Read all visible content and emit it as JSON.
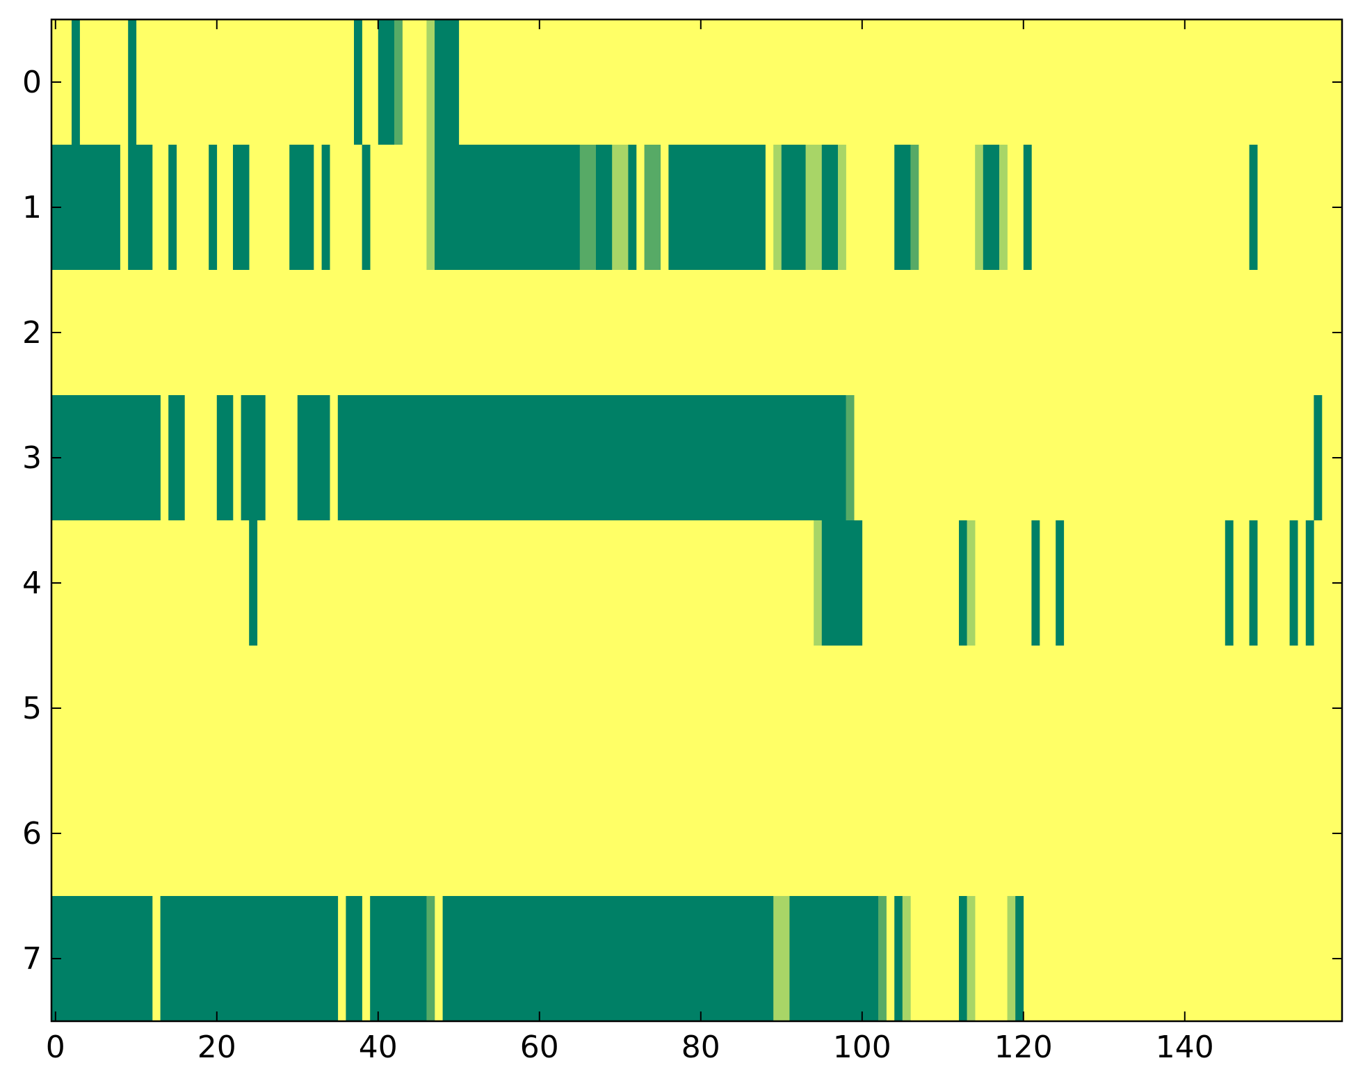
{
  "chart_data": {
    "type": "heatmap",
    "title": "",
    "xlabel": "",
    "ylabel": "",
    "xlim": [
      -0.5,
      159.5
    ],
    "ylim": [
      7.5,
      -0.5
    ],
    "x_ticks": [
      0,
      20,
      40,
      60,
      80,
      100,
      120,
      140
    ],
    "x_tick_labels": [
      "0",
      "20",
      "40",
      "60",
      "80",
      "100",
      "120",
      "140"
    ],
    "y_ticks": [
      0,
      1,
      2,
      3,
      4,
      5,
      6,
      7
    ],
    "y_tick_labels": [
      "0",
      "1",
      "2",
      "3",
      "4",
      "5",
      "6",
      "7"
    ],
    "grid": false,
    "colormap": "summer_r",
    "value_colors": {
      "0": "#ffff66",
      "1": "#a8d567",
      "2": "#57aa66",
      "3": "#008066"
    },
    "rows": [
      {
        "row": 0,
        "segments": [
          [
            2,
            3,
            3
          ],
          [
            9,
            10,
            3
          ],
          [
            37,
            38,
            3
          ],
          [
            40,
            42,
            3
          ],
          [
            42,
            43,
            2
          ],
          [
            46,
            47,
            1
          ],
          [
            47,
            50,
            3
          ]
        ]
      },
      {
        "row": 1,
        "segments": [
          [
            -0.5,
            8,
            3
          ],
          [
            9,
            12,
            3
          ],
          [
            14,
            15,
            3
          ],
          [
            19,
            20,
            3
          ],
          [
            22,
            24,
            3
          ],
          [
            29,
            32,
            3
          ],
          [
            33,
            34,
            3
          ],
          [
            38,
            39,
            3
          ],
          [
            46,
            47,
            1
          ],
          [
            47,
            65,
            3
          ],
          [
            65,
            67,
            2
          ],
          [
            67,
            69,
            3
          ],
          [
            69,
            71,
            1
          ],
          [
            71,
            72,
            3
          ],
          [
            73,
            75,
            2
          ],
          [
            76,
            88,
            3
          ],
          [
            89,
            90,
            1
          ],
          [
            90,
            93,
            3
          ],
          [
            93,
            95,
            1
          ],
          [
            95,
            97,
            3
          ],
          [
            97,
            98,
            1
          ],
          [
            104,
            106,
            3
          ],
          [
            106,
            107,
            2
          ],
          [
            114,
            115,
            1
          ],
          [
            115,
            117,
            3
          ],
          [
            117,
            118,
            1
          ],
          [
            120,
            121,
            3
          ],
          [
            148,
            149,
            3
          ]
        ]
      },
      {
        "row": 2,
        "segments": []
      },
      {
        "row": 3,
        "segments": [
          [
            -0.5,
            13,
            3
          ],
          [
            14,
            16,
            3
          ],
          [
            20,
            22,
            3
          ],
          [
            23,
            26,
            3
          ],
          [
            30,
            34,
            3
          ],
          [
            35,
            98,
            3
          ],
          [
            98,
            99,
            2
          ],
          [
            156,
            157,
            3
          ]
        ]
      },
      {
        "row": 4,
        "segments": [
          [
            24,
            25,
            3
          ],
          [
            94,
            95,
            1
          ],
          [
            95,
            100,
            3
          ],
          [
            112,
            113,
            3
          ],
          [
            113,
            114,
            1
          ],
          [
            121,
            122,
            3
          ],
          [
            124,
            125,
            3
          ],
          [
            145,
            146,
            3
          ],
          [
            148,
            149,
            3
          ],
          [
            153,
            154,
            3
          ],
          [
            155,
            156,
            3
          ]
        ]
      },
      {
        "row": 5,
        "segments": []
      },
      {
        "row": 6,
        "segments": []
      },
      {
        "row": 7,
        "segments": [
          [
            -0.5,
            12,
            3
          ],
          [
            13,
            35,
            3
          ],
          [
            36,
            38,
            3
          ],
          [
            39,
            46,
            3
          ],
          [
            46,
            47,
            2
          ],
          [
            48,
            89,
            3
          ],
          [
            89,
            91,
            1
          ],
          [
            91,
            102,
            3
          ],
          [
            102,
            103,
            2
          ],
          [
            104,
            105,
            3
          ],
          [
            105,
            106,
            1
          ],
          [
            112,
            113,
            3
          ],
          [
            113,
            114,
            1
          ],
          [
            118,
            119,
            1
          ],
          [
            119,
            120,
            3
          ]
        ]
      }
    ]
  }
}
